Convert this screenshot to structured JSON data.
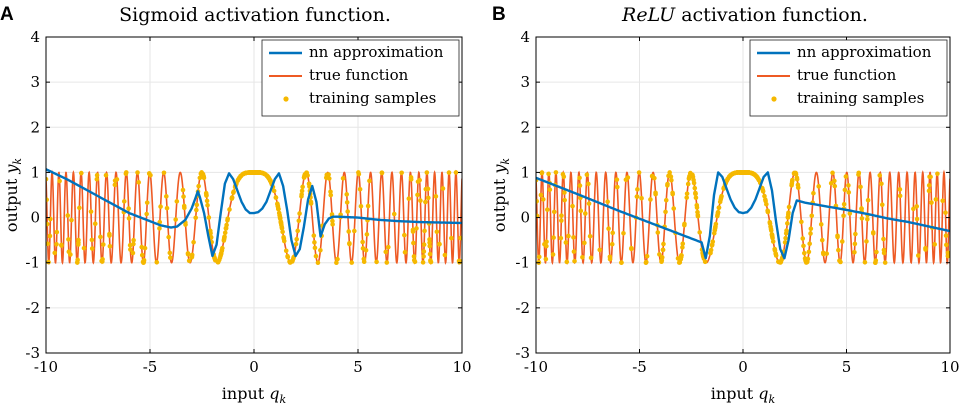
{
  "figure": {
    "panels": [
      {
        "label": "A",
        "title": "Sigmoid activation function.",
        "title_italic_part": "",
        "title_rest": "Sigmoid activation function."
      },
      {
        "label": "B",
        "title": "ReLU activation function.",
        "title_italic_part": "ReLU",
        "title_rest": " activation function."
      }
    ]
  },
  "colors": {
    "nn": "#0072BD",
    "true": "#EE5A24",
    "samples": "#F5B800",
    "axis": "#000000",
    "grid": "#e6e6e6"
  },
  "chart_data": [
    {
      "type": "line",
      "panel": "A",
      "title": "Sigmoid activation function.",
      "xlabel": "input q_k",
      "ylabel": "output y_k",
      "xlabel_main": "input ",
      "xlabel_var": "q",
      "xlabel_sub": "k",
      "ylabel_main": "output ",
      "ylabel_var": "y",
      "ylabel_sub": "k",
      "xlim": [
        -10,
        10
      ],
      "ylim": [
        -3,
        4
      ],
      "xticks": [
        -10,
        -5,
        0,
        5,
        10
      ],
      "xtick_labels": [
        "-10",
        "-5",
        "0",
        "5",
        "10"
      ],
      "yticks": [
        -3,
        -2,
        -1,
        0,
        1,
        2,
        3,
        4
      ],
      "ytick_labels": [
        "-3",
        "-2",
        "-1",
        "0",
        "1",
        "2",
        "3",
        "4"
      ],
      "grid": true,
      "legend_position": "top-right",
      "legend": [
        "nn approximation",
        "true function",
        "training samples"
      ],
      "true_function": "cos(q^2)",
      "sample_range": [
        -10,
        10
      ],
      "series": [
        {
          "name": "nn approximation",
          "x": [
            -10,
            -9,
            -8,
            -7,
            -6,
            -5,
            -4.5,
            -4,
            -3.7,
            -3.3,
            -3.0,
            -2.8,
            -2.7,
            -2.6,
            -2.4,
            -2.2,
            -2.0,
            -1.8,
            -1.6,
            -1.4,
            -1.2,
            -1.0,
            -0.8,
            -0.6,
            -0.4,
            -0.2,
            0,
            0.2,
            0.4,
            0.6,
            0.8,
            1.0,
            1.2,
            1.4,
            1.6,
            1.8,
            2.0,
            2.2,
            2.4,
            2.6,
            2.8,
            3.0,
            3.2,
            3.4,
            3.6,
            3.8,
            4.0,
            5,
            6,
            7,
            8,
            9,
            10
          ],
          "y": [
            1.07,
            0.85,
            0.6,
            0.35,
            0.1,
            -0.08,
            -0.17,
            -0.22,
            -0.2,
            -0.05,
            0.2,
            0.45,
            0.58,
            0.45,
            0.1,
            -0.4,
            -0.85,
            -0.6,
            0.1,
            0.75,
            0.98,
            0.85,
            0.6,
            0.35,
            0.18,
            0.1,
            0.1,
            0.12,
            0.2,
            0.35,
            0.6,
            0.85,
            0.98,
            0.7,
            0.15,
            -0.5,
            -0.85,
            -0.7,
            -0.2,
            0.4,
            0.7,
            0.35,
            -0.42,
            -0.15,
            -0.02,
            0.02,
            0.02,
            0.0,
            -0.05,
            -0.08,
            -0.1,
            -0.11,
            -0.12
          ]
        }
      ]
    },
    {
      "type": "line",
      "panel": "B",
      "title": "ReLU activation function.",
      "xlabel": "input q_k",
      "ylabel": "output y_k",
      "xlabel_main": "input ",
      "xlabel_var": "q",
      "xlabel_sub": "k",
      "ylabel_main": "output ",
      "ylabel_var": "y",
      "ylabel_sub": "k",
      "xlim": [
        -10,
        10
      ],
      "ylim": [
        -3,
        4
      ],
      "xticks": [
        -10,
        -5,
        0,
        5,
        10
      ],
      "xtick_labels": [
        "-10",
        "-5",
        "0",
        "5",
        "10"
      ],
      "yticks": [
        -3,
        -2,
        -1,
        0,
        1,
        2,
        3,
        4
      ],
      "ytick_labels": [
        "-3",
        "-2",
        "-1",
        "0",
        "1",
        "2",
        "3",
        "4"
      ],
      "grid": true,
      "legend_position": "top-right",
      "legend": [
        "nn approximation",
        "true function",
        "training samples"
      ],
      "true_function": "cos(q^2)",
      "sample_range": [
        -10,
        10
      ],
      "series": [
        {
          "name": "nn approximation",
          "x": [
            -10,
            -8,
            -6,
            -4,
            -2,
            -1.8,
            -1.6,
            -1.4,
            -1.2,
            -1.0,
            -0.8,
            -0.6,
            -0.4,
            -0.2,
            0,
            0.2,
            0.4,
            0.6,
            0.8,
            1.0,
            1.2,
            1.4,
            1.6,
            1.8,
            2.0,
            2.2,
            2.4,
            2.6,
            3,
            4,
            5,
            6,
            7,
            8,
            9,
            10
          ],
          "y": [
            0.88,
            0.52,
            0.15,
            -0.2,
            -0.55,
            -0.9,
            -0.4,
            0.5,
            1.0,
            0.9,
            0.65,
            0.4,
            0.22,
            0.12,
            0.1,
            0.12,
            0.22,
            0.4,
            0.65,
            0.9,
            1.0,
            0.6,
            -0.1,
            -0.7,
            -0.9,
            -0.5,
            0.1,
            0.38,
            0.33,
            0.25,
            0.17,
            0.08,
            -0.02,
            -0.1,
            -0.2,
            -0.3
          ]
        }
      ]
    }
  ]
}
